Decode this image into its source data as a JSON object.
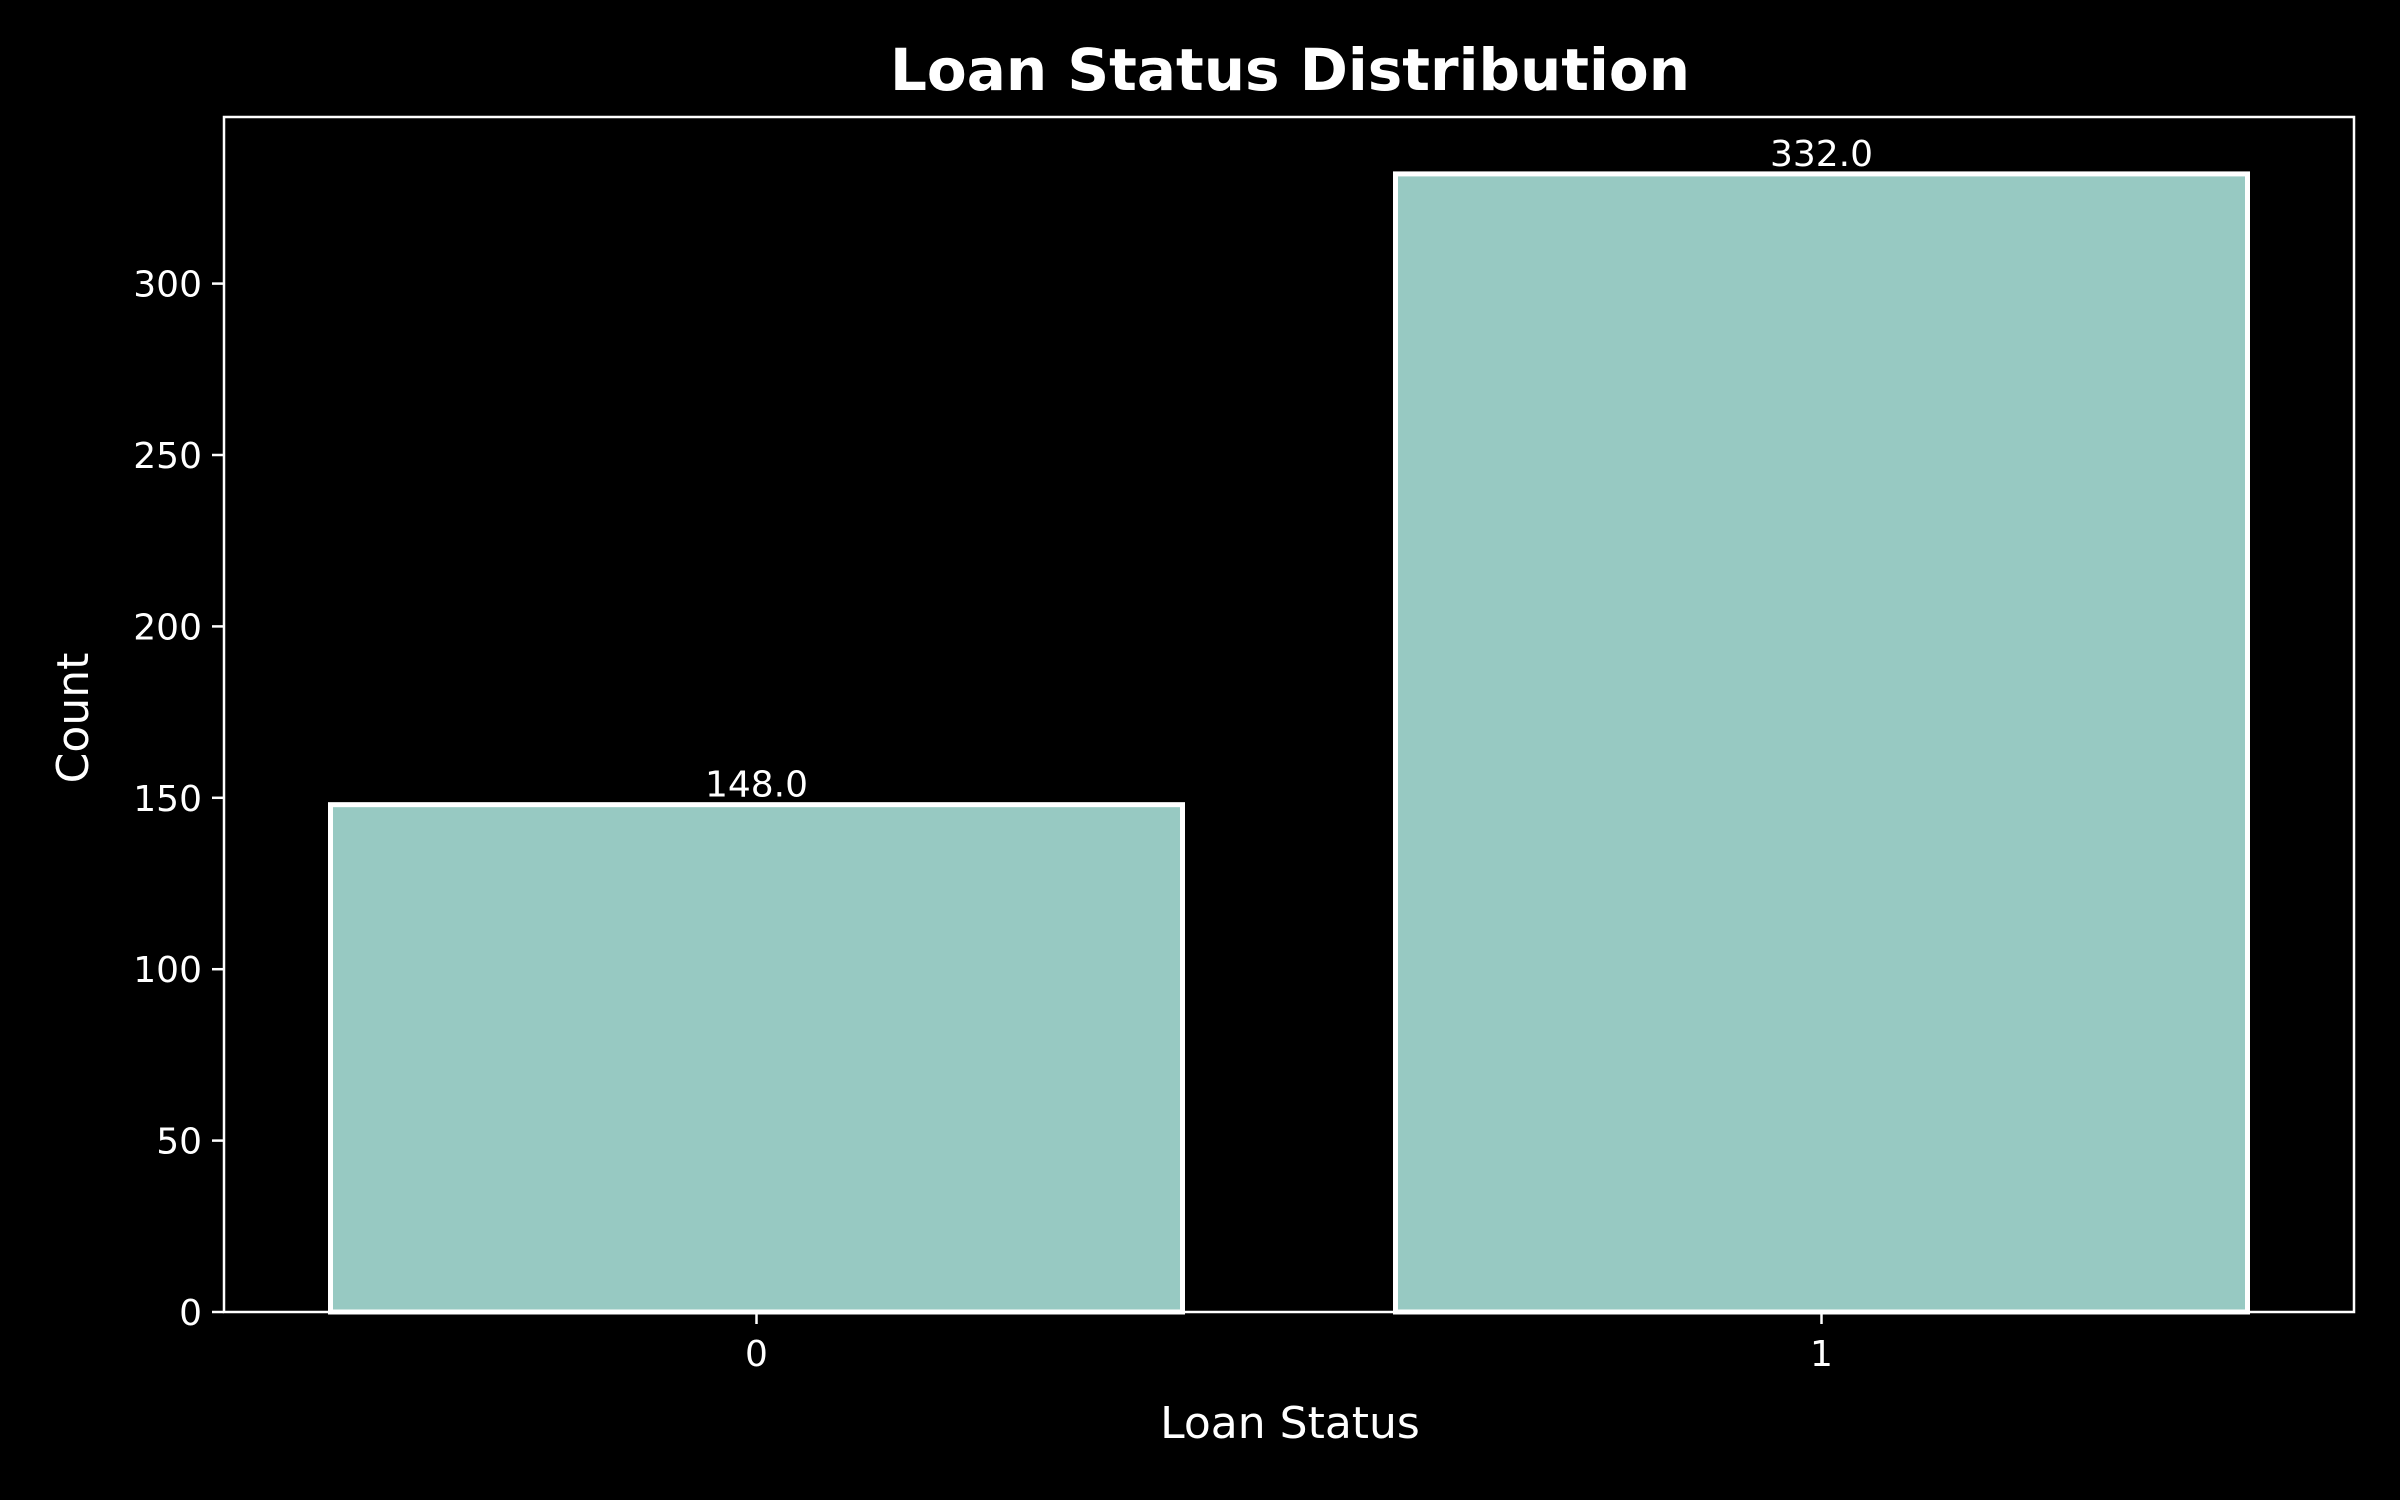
{
  "chart_data": {
    "type": "bar",
    "title": "Loan Status Distribution",
    "xlabel": "Loan Status",
    "ylabel": "Count",
    "categories": [
      "0",
      "1"
    ],
    "values": [
      148.0,
      332.0
    ],
    "value_labels": [
      "148.0",
      "332.0"
    ],
    "ylim": [
      0,
      348.6
    ],
    "yticks": [
      0,
      50,
      100,
      150,
      200,
      250,
      300
    ],
    "ytick_labels": [
      "0",
      "50",
      "100",
      "150",
      "200",
      "250",
      "300"
    ],
    "grid": false,
    "legend": "none",
    "colors": {
      "background": "#000000",
      "bar_fill": "#97c9c2",
      "bar_edge": "#ffffff",
      "text": "#ffffff",
      "axes": "#ffffff"
    }
  }
}
